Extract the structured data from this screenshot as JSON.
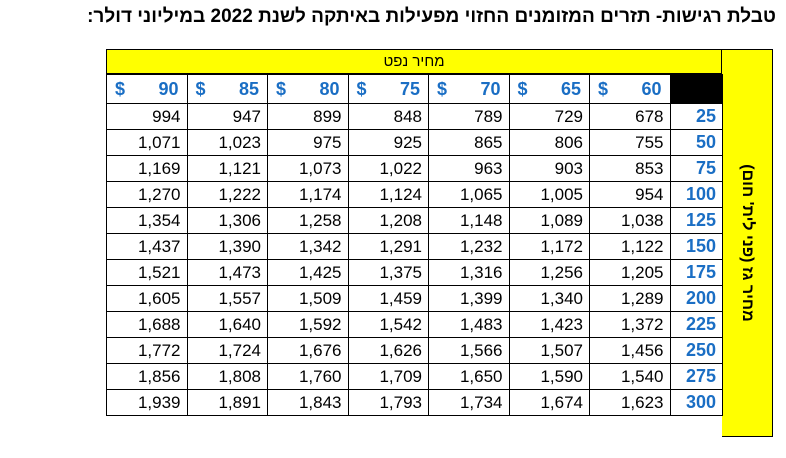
{
  "title": "טבלת רגישות- תזרים המזומנים החזוי מפעילות באיתקה לשנת 2022 במיליוני דולר:",
  "oil_price_label": "מחיר נפט",
  "gas_price_label": "מחיר גז (פני לית' חום)",
  "currency_symbol": "$",
  "oil_prices": [
    "90",
    "85",
    "80",
    "75",
    "70",
    "65",
    "60"
  ],
  "gas_prices": [
    "25",
    "50",
    "75",
    "100",
    "125",
    "150",
    "175",
    "200",
    "225",
    "250",
    "275",
    "300"
  ],
  "rows": [
    [
      "994",
      "947",
      "899",
      "848",
      "789",
      "729",
      "678"
    ],
    [
      "1,071",
      "1,023",
      "975",
      "925",
      "865",
      "806",
      "755"
    ],
    [
      "1,169",
      "1,121",
      "1,073",
      "1,022",
      "963",
      "903",
      "853"
    ],
    [
      "1,270",
      "1,222",
      "1,174",
      "1,124",
      "1,065",
      "1,005",
      "954"
    ],
    [
      "1,354",
      "1,306",
      "1,258",
      "1,208",
      "1,148",
      "1,089",
      "1,038"
    ],
    [
      "1,437",
      "1,390",
      "1,342",
      "1,291",
      "1,232",
      "1,172",
      "1,122"
    ],
    [
      "1,521",
      "1,473",
      "1,425",
      "1,375",
      "1,316",
      "1,256",
      "1,205"
    ],
    [
      "1,605",
      "1,557",
      "1,509",
      "1,459",
      "1,399",
      "1,340",
      "1,289"
    ],
    [
      "1,688",
      "1,640",
      "1,592",
      "1,542",
      "1,483",
      "1,423",
      "1,372"
    ],
    [
      "1,772",
      "1,724",
      "1,676",
      "1,626",
      "1,566",
      "1,507",
      "1,456"
    ],
    [
      "1,856",
      "1,808",
      "1,760",
      "1,709",
      "1,650",
      "1,590",
      "1,540"
    ],
    [
      "1,939",
      "1,891",
      "1,843",
      "1,793",
      "1,734",
      "1,674",
      "1,623"
    ]
  ],
  "colors": {
    "header_bg": "#ffff00",
    "accent_blue": "#1a6ec4",
    "corner": "#000000"
  }
}
